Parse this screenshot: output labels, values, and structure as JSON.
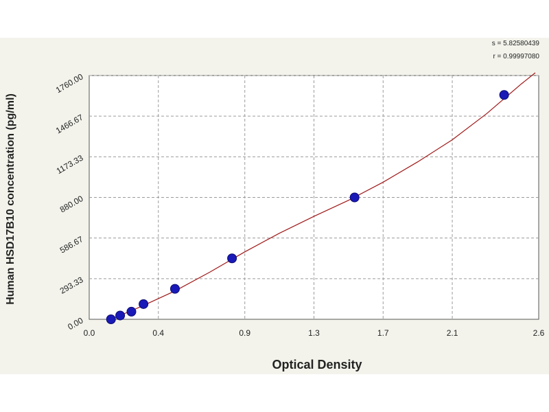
{
  "chart_data": {
    "type": "scatter",
    "title": "",
    "xlabel": "Optical Density",
    "ylabel": "Human HSD17B10 concentration (pg/ml)",
    "xlim": [
      0.0,
      2.6
    ],
    "ylim": [
      0,
      1760
    ],
    "x_ticks": [
      "0.0",
      "0.4",
      "0.9",
      "1.3",
      "1.7",
      "2.1",
      "2.6"
    ],
    "x_tick_values": [
      0.0,
      0.4,
      0.9,
      1.3,
      1.7,
      2.1,
      2.6
    ],
    "y_ticks": [
      "0.00",
      "293.33",
      "586.67",
      "880.00",
      "1173.33",
      "1466.67",
      "1760.00"
    ],
    "y_tick_values": [
      0,
      293.33,
      586.67,
      880,
      1173.33,
      1466.67,
      1760
    ],
    "grid": true,
    "points": {
      "x": [
        0.126,
        0.179,
        0.244,
        0.314,
        0.496,
        0.826,
        1.535,
        2.4
      ],
      "y": [
        0,
        27.5,
        55,
        110,
        220,
        440,
        880,
        1620
      ]
    },
    "fit_curve": {
      "x": [
        0.126,
        0.3,
        0.5,
        0.7,
        0.9,
        1.1,
        1.3,
        1.5,
        1.7,
        1.9,
        2.1,
        2.3,
        2.5,
        2.58
      ],
      "y": [
        0,
        92,
        207,
        342,
        487,
        621,
        743,
        859,
        990,
        1137,
        1296,
        1486,
        1700,
        1780
      ]
    },
    "colors": {
      "points": "#1a1ab8",
      "curve": "#a01818",
      "plot_background": "#ffffff",
      "page_background": "#f3f3ec",
      "grid": "#9a9a9a"
    },
    "stats": {
      "s": "s = 5.82580439",
      "r": "r = 0.99997080"
    }
  }
}
